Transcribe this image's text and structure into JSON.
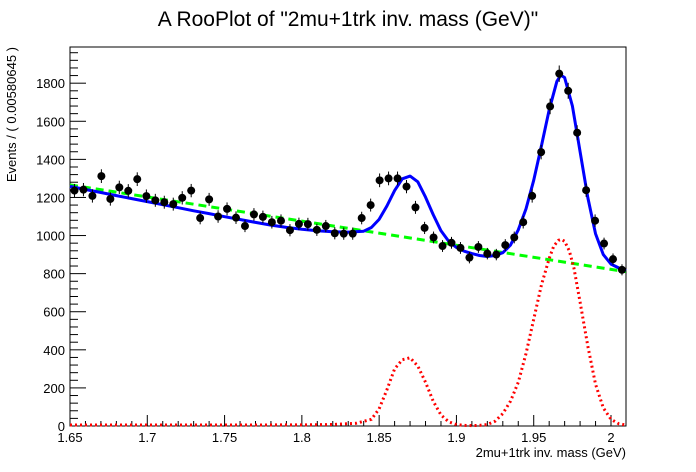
{
  "chart_data": {
    "type": "scatter",
    "title": "A RooPlot of \"2mu+1trk inv. mass (GeV)\"",
    "xlabel": "2mu+1trk inv. mass (GeV)",
    "ylabel": "Events / ( 0.00580645 )",
    "xlim": [
      1.65,
      2.0097
    ],
    "ylim": [
      0,
      1990
    ],
    "x_ticks": [
      "1.65",
      "1.7",
      "1.75",
      "1.8",
      "1.85",
      "1.9",
      "1.95",
      "2"
    ],
    "y_ticks": [
      "0",
      "200",
      "400",
      "600",
      "800",
      "1000",
      "1200",
      "1400",
      "1600",
      "1800"
    ],
    "grid": false,
    "colors": {
      "data": "#000000",
      "total_fit": "#0000ff",
      "background": "#00ff00",
      "signal": "#ff0000"
    },
    "series": [
      {
        "style": "markers-with-error-bars",
        "x": [
          1.6529,
          1.6587,
          1.6645,
          1.6703,
          1.6761,
          1.6819,
          1.6877,
          1.6935,
          1.6994,
          1.7052,
          1.711,
          1.7168,
          1.7226,
          1.7284,
          1.7342,
          1.74,
          1.7458,
          1.7516,
          1.7574,
          1.7632,
          1.769,
          1.7748,
          1.7806,
          1.7865,
          1.7923,
          1.7981,
          1.8039,
          1.8097,
          1.8155,
          1.8213,
          1.8271,
          1.8329,
          1.8387,
          1.8445,
          1.8503,
          1.8561,
          1.8619,
          1.8677,
          1.8735,
          1.8794,
          1.8852,
          1.891,
          1.8968,
          1.9026,
          1.9084,
          1.9142,
          1.92,
          1.9258,
          1.9316,
          1.9374,
          1.9432,
          1.949,
          1.9548,
          1.9606,
          1.9665,
          1.9723,
          1.9781,
          1.9839,
          1.9897,
          1.9955,
          2.0013,
          2.0071
        ],
        "values": [
          1236,
          1241,
          1208,
          1312,
          1192,
          1253,
          1235,
          1296,
          1207,
          1185,
          1175,
          1165,
          1198,
          1236,
          1092,
          1190,
          1100,
          1140,
          1094,
          1050,
          1111,
          1098,
          1070,
          1078,
          1028,
          1061,
          1060,
          1030,
          1050,
          1012,
          1010,
          1010,
          1092,
          1160,
          1290,
          1300,
          1300,
          1257,
          1148,
          1040,
          990,
          945,
          962,
          935,
          884,
          940,
          905,
          900,
          950,
          990,
          1070,
          1208,
          1438,
          1678,
          1850,
          1760,
          1540,
          1238,
          1078,
          958,
          876,
          820
        ],
        "errors": [
          35,
          35,
          35,
          36,
          35,
          35,
          35,
          36,
          35,
          34,
          34,
          34,
          35,
          35,
          33,
          34,
          33,
          34,
          33,
          32,
          33,
          33,
          33,
          33,
          32,
          33,
          33,
          32,
          32,
          32,
          32,
          32,
          33,
          34,
          36,
          36,
          36,
          35,
          34,
          32,
          31,
          31,
          31,
          31,
          30,
          31,
          30,
          30,
          31,
          31,
          33,
          35,
          38,
          41,
          43,
          42,
          39,
          35,
          33,
          31,
          30,
          29
        ]
      },
      {
        "style": "solid-line",
        "x": [
          1.65,
          1.66,
          1.67,
          1.68,
          1.69,
          1.7,
          1.71,
          1.72,
          1.73,
          1.74,
          1.75,
          1.76,
          1.77,
          1.78,
          1.79,
          1.8,
          1.81,
          1.82,
          1.83,
          1.84,
          1.845,
          1.85,
          1.855,
          1.86,
          1.865,
          1.87,
          1.875,
          1.88,
          1.885,
          1.89,
          1.895,
          1.9,
          1.905,
          1.91,
          1.915,
          1.92,
          1.925,
          1.93,
          1.935,
          1.94,
          1.945,
          1.95,
          1.955,
          1.96,
          1.965,
          1.9675,
          1.97,
          1.975,
          1.98,
          1.985,
          1.99,
          1.995,
          2.0,
          2.005,
          2.0097
        ],
        "values": [
          1258,
          1242,
          1226,
          1210,
          1194,
          1178,
          1162,
          1146,
          1130,
          1115,
          1099,
          1084,
          1069,
          1055,
          1043,
          1033,
          1025,
          1020,
          1018,
          1023,
          1042,
          1085,
          1155,
          1236,
          1298,
          1312,
          1282,
          1202,
          1110,
          1025,
          970,
          938,
          918,
          905,
          895,
          890,
          895,
          910,
          950,
          1030,
          1140,
          1290,
          1470,
          1660,
          1810,
          1842,
          1830,
          1680,
          1440,
          1200,
          1010,
          900,
          850,
          830,
          816
        ]
      },
      {
        "style": "dashed-line",
        "x": [
          1.65,
          2.0097
        ],
        "values": [
          1266,
          810
        ]
      },
      {
        "style": "dotted-line",
        "x": [
          1.65,
          1.7,
          1.75,
          1.8,
          1.82,
          1.835,
          1.845,
          1.85,
          1.855,
          1.86,
          1.865,
          1.87,
          1.875,
          1.88,
          1.885,
          1.89,
          1.895,
          1.9,
          1.905,
          1.91,
          1.915,
          1.92,
          1.925,
          1.93,
          1.935,
          1.94,
          1.945,
          1.95,
          1.955,
          1.96,
          1.963,
          1.966,
          1.968,
          1.97,
          1.973,
          1.976,
          1.98,
          1.985,
          1.99,
          1.995,
          2.0,
          2.005,
          2.0097
        ],
        "values": [
          5,
          5,
          5,
          6,
          8,
          14,
          35,
          90,
          190,
          300,
          348,
          358,
          315,
          230,
          130,
          58,
          22,
          8,
          3,
          2,
          3,
          8,
          25,
          65,
          130,
          230,
          380,
          560,
          740,
          880,
          945,
          975,
          980,
          970,
          920,
          830,
          650,
          420,
          220,
          95,
          35,
          12,
          5
        ]
      }
    ]
  }
}
